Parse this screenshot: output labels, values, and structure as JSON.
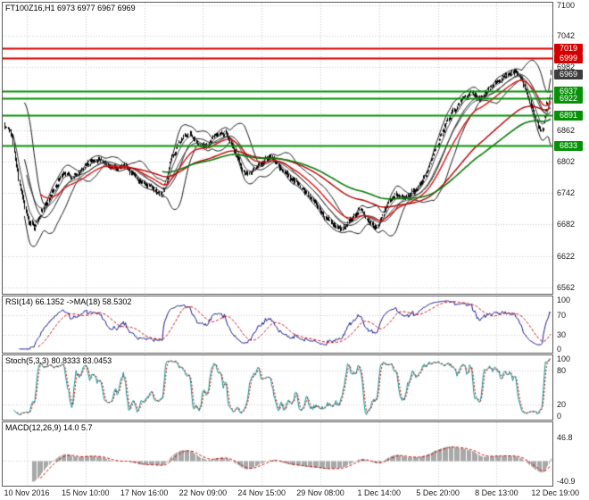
{
  "header": {
    "title": "FT100Z16,H1 6973 6977 6967 6969"
  },
  "panels": {
    "rsi_label": "RSI(14) 66.1352  ->MA(18) 58.5302",
    "stoch_label": "Stoch(5,3,3) 80.8333 83.0453",
    "macd_label": "MACD(12,26,9) 14.0 5.7"
  },
  "chart_data": {
    "type": "candlestick",
    "symbol": "FT100Z16",
    "timeframe": "H1",
    "last_ohlc": {
      "open": 6973,
      "high": 6977,
      "low": 6967,
      "close": 6969
    },
    "current_price": 6969,
    "candle_count": 520,
    "price_axis": {
      "min": 6550,
      "max": 7105,
      "ticks": [
        7100,
        7042,
        6982,
        6922,
        6862,
        6802,
        6742,
        6682,
        6622,
        6562
      ]
    },
    "time_ticks": [
      "10 Nov 2016",
      "15 Nov 10:00",
      "17 Nov 16:00",
      "22 Nov 09:00",
      "24 Nov 15:00",
      "29 Nov 08:00",
      "1 Dec 14:00",
      "5 Dec 20:00",
      "8 Dec 13:00",
      "12 Dec 19:00"
    ],
    "levels": [
      {
        "price": 7019,
        "kind": "resistance"
      },
      {
        "price": 6999,
        "kind": "resistance"
      },
      {
        "price": 6937,
        "kind": "support"
      },
      {
        "price": 6922,
        "kind": "support"
      },
      {
        "price": 6891,
        "kind": "support"
      },
      {
        "price": 6833,
        "kind": "support"
      }
    ],
    "price_path": [
      [
        0.0,
        6872
      ],
      [
        0.013,
        6858
      ],
      [
        0.026,
        6768
      ],
      [
        0.042,
        6694
      ],
      [
        0.055,
        6678
      ],
      [
        0.071,
        6726
      ],
      [
        0.088,
        6756
      ],
      [
        0.107,
        6792
      ],
      [
        0.123,
        6772
      ],
      [
        0.148,
        6790
      ],
      [
        0.172,
        6802
      ],
      [
        0.196,
        6778
      ],
      [
        0.221,
        6788
      ],
      [
        0.245,
        6772
      ],
      [
        0.269,
        6748
      ],
      [
        0.289,
        6742
      ],
      [
        0.305,
        6800
      ],
      [
        0.321,
        6832
      ],
      [
        0.338,
        6842
      ],
      [
        0.354,
        6824
      ],
      [
        0.37,
        6818
      ],
      [
        0.386,
        6852
      ],
      [
        0.403,
        6860
      ],
      [
        0.419,
        6834
      ],
      [
        0.435,
        6794
      ],
      [
        0.451,
        6786
      ],
      [
        0.471,
        6806
      ],
      [
        0.49,
        6818
      ],
      [
        0.51,
        6796
      ],
      [
        0.529,
        6776
      ],
      [
        0.549,
        6756
      ],
      [
        0.568,
        6738
      ],
      [
        0.584,
        6710
      ],
      [
        0.601,
        6694
      ],
      [
        0.617,
        6682
      ],
      [
        0.633,
        6702
      ],
      [
        0.649,
        6722
      ],
      [
        0.666,
        6700
      ],
      [
        0.682,
        6688
      ],
      [
        0.698,
        6728
      ],
      [
        0.718,
        6750
      ],
      [
        0.737,
        6744
      ],
      [
        0.757,
        6764
      ],
      [
        0.773,
        6794
      ],
      [
        0.789,
        6840
      ],
      [
        0.805,
        6880
      ],
      [
        0.821,
        6908
      ],
      [
        0.838,
        6928
      ],
      [
        0.854,
        6942
      ],
      [
        0.87,
        6930
      ],
      [
        0.886,
        6954
      ],
      [
        0.903,
        6966
      ],
      [
        0.919,
        6978
      ],
      [
        0.935,
        6988
      ],
      [
        0.948,
        6966
      ],
      [
        0.961,
        6928
      ],
      [
        0.974,
        6886
      ],
      [
        0.984,
        6864
      ],
      [
        0.994,
        6934
      ],
      [
        1.0,
        6969
      ]
    ],
    "indicators": {
      "rsi": {
        "period": 14,
        "ma_period": 18,
        "value": 66.1352,
        "ma_value": 58.5302,
        "range": [
          0,
          100
        ],
        "levels": [
          70,
          30
        ],
        "ticks": [
          100,
          70,
          30,
          0
        ],
        "color": "#1a1a90",
        "ma_color": "#cc0000"
      },
      "stoch": {
        "k_period": 5,
        "slowing": 3,
        "d_period": 3,
        "k": 80.8333,
        "d": 83.0453,
        "range": [
          0,
          100
        ],
        "levels": [
          80,
          20
        ],
        "ticks": [
          100,
          80,
          20,
          0
        ],
        "color": "#0b9a9a",
        "signal_color": "#cc0000"
      },
      "macd": {
        "fast": 12,
        "slow": 26,
        "signal_period": 9,
        "value": 14.0,
        "signal": 5.7,
        "range": [
          -50,
          78
        ],
        "ticks": [
          46.8,
          -40.9
        ],
        "hist_color": "#a8a8a8",
        "signal_color": "#cc0000"
      }
    },
    "colors": {
      "grid": "#cdcdcd",
      "candle": "#000000",
      "bollinger": "#161616",
      "ma_fast": "#3c3c3c",
      "ma_red_fast": "#dd1111",
      "ma_red_slow": "#b30000",
      "ma_green": "#0a7a0a",
      "resistance": "#d40000",
      "support": "#079107",
      "badge_current": "#3c3c3c"
    }
  }
}
